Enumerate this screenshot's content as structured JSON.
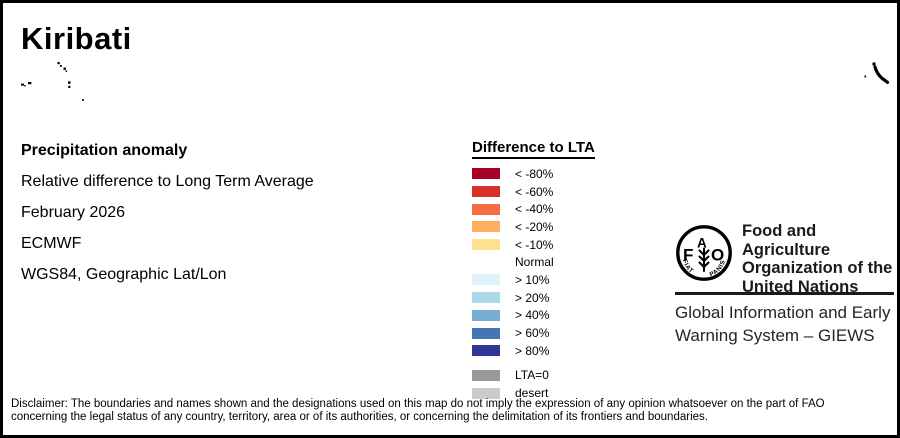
{
  "title": "Kiribati",
  "info": {
    "heading": "Precipitation anomaly",
    "lines": [
      "Relative difference to Long Term Average",
      "February 2026",
      "ECMWF",
      "WGS84, Geographic Lat/Lon"
    ]
  },
  "legend": {
    "title": "Difference to LTA",
    "items": [
      {
        "label": "< -80%",
        "color": "#A50026"
      },
      {
        "label": "< -60%",
        "color": "#D73027"
      },
      {
        "label": "< -40%",
        "color": "#F46D43"
      },
      {
        "label": "< -20%",
        "color": "#FDAE61"
      },
      {
        "label": "< -10%",
        "color": "#FEE090"
      },
      {
        "label": "Normal",
        "color": "#FFFFFF"
      },
      {
        "label": "> 10%",
        "color": "#E0F3F8"
      },
      {
        "label": "> 20%",
        "color": "#ABD9E9"
      },
      {
        "label": "> 40%",
        "color": "#74ADD1"
      },
      {
        "label": "> 60%",
        "color": "#4575B4"
      },
      {
        "label": "> 80%",
        "color": "#313695"
      }
    ],
    "extra_items": [
      {
        "label": "LTA=0",
        "color": "#999999"
      },
      {
        "label": "desert",
        "color": "#CBCBCB"
      }
    ]
  },
  "fao": {
    "logo": {
      "f": "F",
      "a": "A",
      "o": "O",
      "motto_left": "FIAT",
      "motto_right": "PANIS"
    },
    "org_lines": [
      "Food and Agriculture",
      "Organization of the",
      "United Nations"
    ],
    "giews_lines": [
      "Global Information and Early",
      "Warning System – GIEWS"
    ]
  },
  "disclaimer": {
    "line1": "Disclaimer: The boundaries and names shown and the designations used on this map do not imply the expression of any opinion whatsoever on the part of FAO",
    "line2": "concerning the legal status of any country, territory, area or of its authorities, or concerning the delimitation of its frontiers and boundaries."
  }
}
